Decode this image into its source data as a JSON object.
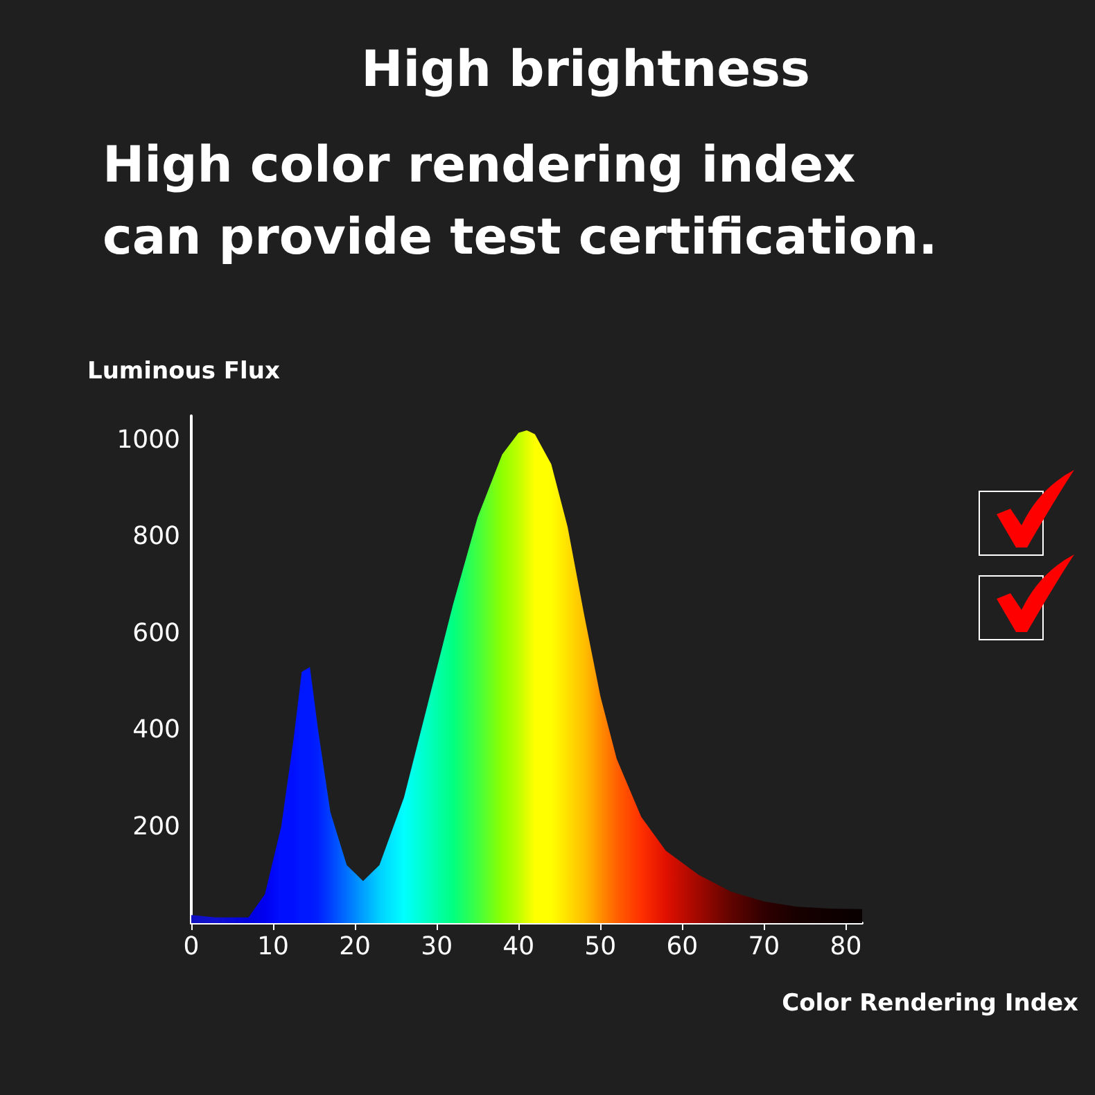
{
  "chart_data": {
    "type": "area",
    "title": "High brightness",
    "subtitle": "High color rendering index\ncan provide test certification.",
    "xlabel": "Color Rendering Index",
    "ylabel": "Luminous Flux",
    "x": [
      0,
      3,
      7,
      9,
      11,
      12.5,
      13.5,
      14.5,
      15.5,
      17,
      19,
      21,
      23,
      26,
      29,
      32,
      35,
      38,
      40,
      41,
      42,
      44,
      46,
      48,
      50,
      52,
      55,
      58,
      62,
      66,
      70,
      74,
      78,
      82
    ],
    "values": [
      17,
      12,
      12,
      60,
      200,
      380,
      520,
      530,
      400,
      230,
      120,
      87,
      120,
      260,
      460,
      660,
      840,
      970,
      1015,
      1020,
      1012,
      950,
      820,
      640,
      470,
      340,
      220,
      150,
      100,
      65,
      45,
      34,
      30,
      29
    ],
    "colors": [
      "#1010c0",
      "#1010d0",
      "#0000e0",
      "#0000f0",
      "#0010ff",
      "#0010ff",
      "#0018ff",
      "#0018ff",
      "#0020ff",
      "#0040ff",
      "#0070ff",
      "#00a0ff",
      "#00d0ff",
      "#00ffff",
      "#00ffc0",
      "#00ff80",
      "#40ff40",
      "#90ff00",
      "#c0ff00",
      "#e0ff00",
      "#ffff00",
      "#ffff00",
      "#ffe000",
      "#ffc000",
      "#ff9000",
      "#ff6000",
      "#ff3000",
      "#e01000",
      "#a00800",
      "#600400",
      "#300000",
      "#180000",
      "#100000",
      "#080000"
    ],
    "xlim": [
      0,
      82
    ],
    "xticks": [
      0,
      10,
      20,
      30,
      40,
      50,
      60,
      70,
      80
    ],
    "ylim": [
      0,
      1050
    ],
    "yticks": [
      200,
      400,
      600,
      800,
      1000
    ],
    "grid": false,
    "marker": "none"
  }
}
